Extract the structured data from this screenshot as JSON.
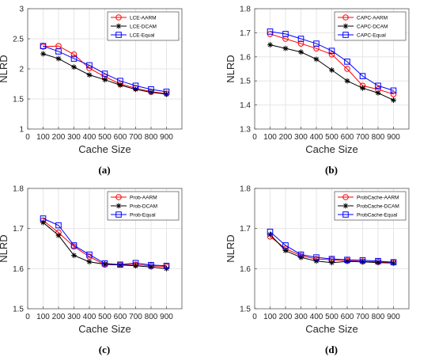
{
  "figure": {
    "background": "#ffffff"
  },
  "colors": {
    "AARM": "#ff0000",
    "DCAM": "#000000",
    "Equal": "#0000ff",
    "grid": "#e6e6e6",
    "axis": "#555555"
  },
  "chart_data": [
    {
      "type": "line",
      "panel_label": "(a)",
      "xlabel": "Cache Size",
      "ylabel": "NLRD",
      "xlim": [
        0,
        1000
      ],
      "ylim": [
        1,
        3
      ],
      "xticks": [
        0,
        100,
        200,
        300,
        400,
        500,
        600,
        700,
        800,
        900
      ],
      "yticks": [
        1,
        1.5,
        2,
        2.5,
        3
      ],
      "ytick_labels": [
        "1",
        "1.5",
        "2",
        "2.5",
        "3"
      ],
      "grid": true,
      "legend": "top-right",
      "x": [
        100,
        200,
        300,
        400,
        500,
        600,
        700,
        800,
        900
      ],
      "series": [
        {
          "name": "LCE-AARM",
          "marker": "circle",
          "color": "#ff0000",
          "values": [
            2.37,
            2.38,
            2.24,
            2.01,
            1.87,
            1.75,
            1.68,
            1.62,
            1.59
          ]
        },
        {
          "name": "LCE-DCAM",
          "marker": "star",
          "color": "#000000",
          "values": [
            2.25,
            2.17,
            2.03,
            1.9,
            1.82,
            1.73,
            1.66,
            1.61,
            1.58
          ]
        },
        {
          "name": "LCE-Equal",
          "marker": "square",
          "color": "#0000ff",
          "values": [
            2.38,
            2.29,
            2.17,
            2.06,
            1.92,
            1.8,
            1.72,
            1.66,
            1.62
          ]
        }
      ]
    },
    {
      "type": "line",
      "panel_label": "(b)",
      "xlabel": "Cache Size",
      "ylabel": "NLRD",
      "xlim": [
        0,
        1000
      ],
      "ylim": [
        1.3,
        1.8
      ],
      "xticks": [
        0,
        100,
        200,
        300,
        400,
        500,
        600,
        700,
        800,
        900
      ],
      "yticks": [
        1.3,
        1.4,
        1.5,
        1.6,
        1.7,
        1.8
      ],
      "ytick_labels": [
        "1.3",
        "1.4",
        "1.5",
        "1.6",
        "1.7",
        "1.8"
      ],
      "grid": true,
      "legend": "top-right",
      "x": [
        100,
        200,
        300,
        400,
        500,
        600,
        700,
        800,
        900
      ],
      "series": [
        {
          "name": "CAPC-AARM",
          "marker": "circle",
          "color": "#ff0000",
          "values": [
            1.695,
            1.675,
            1.655,
            1.635,
            1.61,
            1.55,
            1.48,
            1.465,
            1.445
          ]
        },
        {
          "name": "CAPC-DCAM",
          "marker": "star",
          "color": "#000000",
          "values": [
            1.65,
            1.635,
            1.62,
            1.59,
            1.545,
            1.5,
            1.47,
            1.45,
            1.42
          ]
        },
        {
          "name": "CAPC-Equal",
          "marker": "square",
          "color": "#0000ff",
          "values": [
            1.705,
            1.695,
            1.675,
            1.655,
            1.625,
            1.58,
            1.52,
            1.48,
            1.46
          ]
        }
      ]
    },
    {
      "type": "line",
      "panel_label": "(c)",
      "xlabel": "Cache Size",
      "ylabel": "NLRD",
      "xlim": [
        0,
        1000
      ],
      "ylim": [
        1.5,
        1.8
      ],
      "xticks": [
        0,
        100,
        200,
        300,
        400,
        500,
        600,
        700,
        800,
        900
      ],
      "yticks": [
        1.5,
        1.6,
        1.7,
        1.8
      ],
      "ytick_labels": [
        "1.5",
        "1.6",
        "1.7",
        "1.8"
      ],
      "grid": true,
      "legend": "top-right",
      "x": [
        100,
        200,
        300,
        400,
        500,
        600,
        700,
        800,
        900
      ],
      "series": [
        {
          "name": "Prob-AARM",
          "marker": "circle",
          "color": "#ff0000",
          "values": [
            1.72,
            1.69,
            1.655,
            1.63,
            1.61,
            1.61,
            1.61,
            1.607,
            1.605
          ]
        },
        {
          "name": "Prob-DCAM",
          "marker": "star",
          "color": "#000000",
          "values": [
            1.715,
            1.683,
            1.633,
            1.617,
            1.611,
            1.609,
            1.607,
            1.604,
            1.6
          ]
        },
        {
          "name": "Prob-Equal",
          "marker": "square",
          "color": "#0000ff",
          "values": [
            1.725,
            1.708,
            1.658,
            1.635,
            1.613,
            1.61,
            1.614,
            1.609,
            1.607
          ]
        }
      ]
    },
    {
      "type": "line",
      "panel_label": "(d)",
      "xlabel": "Cache Size",
      "ylabel": "NLRD",
      "xlim": [
        0,
        1000
      ],
      "ylim": [
        1.5,
        1.8
      ],
      "xticks": [
        0,
        100,
        200,
        300,
        400,
        500,
        600,
        700,
        800,
        900
      ],
      "yticks": [
        1.5,
        1.6,
        1.7,
        1.8
      ],
      "ytick_labels": [
        "1.5",
        "1.6",
        "1.7",
        "1.8"
      ],
      "grid": true,
      "legend": "top-right",
      "x": [
        100,
        200,
        300,
        400,
        500,
        600,
        700,
        800,
        900
      ],
      "series": [
        {
          "name": "ProbCache-AARM",
          "marker": "circle",
          "color": "#ff0000",
          "values": [
            1.68,
            1.65,
            1.632,
            1.624,
            1.622,
            1.62,
            1.618,
            1.617,
            1.615
          ]
        },
        {
          "name": "ProbCache-DCAM",
          "marker": "star",
          "color": "#000000",
          "values": [
            1.685,
            1.645,
            1.628,
            1.619,
            1.615,
            1.618,
            1.617,
            1.615,
            1.614
          ]
        },
        {
          "name": "ProbCache-Equal",
          "marker": "square",
          "color": "#0000ff",
          "values": [
            1.692,
            1.658,
            1.635,
            1.628,
            1.624,
            1.622,
            1.621,
            1.619,
            1.616
          ]
        }
      ]
    }
  ]
}
